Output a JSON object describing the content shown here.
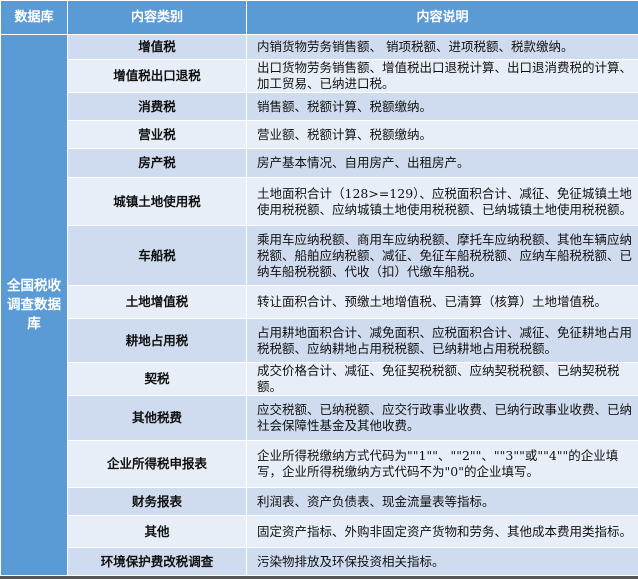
{
  "header": {
    "col1": "数据库",
    "col2": "内容类别",
    "col3": "内容说明"
  },
  "database": "全国税收调查数据库",
  "rows": [
    {
      "category": "增值税",
      "description": "内销货物劳务销售额、 销项税额、进项税额、税款缴纳。"
    },
    {
      "category": "增值税出口退税",
      "description": "出口货物劳务销售额、增值税出口退税计算、出口退消费税的计算、加工贸易、已纳进口税。"
    },
    {
      "category": "消费税",
      "description": "销售额、税额计算、税额缴纳。"
    },
    {
      "category": "营业税",
      "description": "营业额、税额计算、税额缴纳。"
    },
    {
      "category": "房产税",
      "description": "房产基本情况、自用房产、出租房产。"
    },
    {
      "category": "城镇土地使用税",
      "description": "土地面积合计（128>=129）、应税面积合计、减征、免征城镇土地使用税税额、应纳城镇土地使用税税额、已纳城镇土地使用税税额。"
    },
    {
      "category": "车船税",
      "description": "乘用车应纳税额、商用车应纳税额、摩托车应纳税额、其他车辆应纳税额、船舶应纳税额、减征、免征车船税税额、应纳车船税税额、已纳车船税税额、代收（扣）代缴车船税。"
    },
    {
      "category": "土地增值税",
      "description": "转让面积合计、预缴土地增值税、已清算（核算）土地增值税。"
    },
    {
      "category": "耕地占用税",
      "description": "占用耕地面积合计、减免面积、应税面积合计、减征、免征耕地占用税税额、应纳耕地占用税税额、已纳耕地占用税税额。"
    },
    {
      "category": "契税",
      "description": "成交价格合计、减征、免征契税税额、应纳契税税额、已纳契税税额。"
    },
    {
      "category": "其他税费",
      "description": "应交税额、已纳税额、应交行政事业收费、已纳行政事业收费、已纳社会保障性基金及其他收费。"
    },
    {
      "category": "企业所得税申报表",
      "description": "企业所得税缴纳方式代码为\"\"1\"\"、\"\"2\"\"、\"\"3\"\"或\"\"4\"\"的企业填写，企业所得税缴纳方式代码不为\"0\"的企业填写。"
    },
    {
      "category": "财务报表",
      "description": "利润表、资产负债表、现金流量表等指标。"
    },
    {
      "category": "其他",
      "description": "固定资产指标、外购非固定资产货物和劳务、其他成本费用类指标。"
    },
    {
      "category": "环境保护费改税调查",
      "description": "污染物排放及环保投资相关指标。"
    }
  ],
  "colors": {
    "header": "#5b9bd5",
    "row_dark": "#cfdbee",
    "row_light": "#e8eef7"
  }
}
